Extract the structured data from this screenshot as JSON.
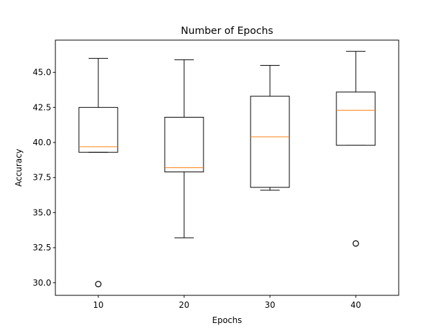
{
  "chart_data": {
    "type": "box",
    "title": "Number of Epochs",
    "xlabel": "Epochs",
    "ylabel": "Accuracy",
    "ylim": [
      29.1,
      47.3
    ],
    "yticks": [
      30.0,
      32.5,
      35.0,
      37.5,
      40.0,
      42.5,
      45.0
    ],
    "ytick_labels": [
      "30.0",
      "32.5",
      "35.0",
      "37.5",
      "40.0",
      "42.5",
      "45.0"
    ],
    "categories": [
      "10",
      "20",
      "30",
      "40"
    ],
    "boxes": [
      {
        "category": "10",
        "whisker_low": 39.3,
        "q1": 39.3,
        "median": 39.7,
        "q3": 42.5,
        "whisker_high": 46.0,
        "outliers": [
          29.9
        ]
      },
      {
        "category": "20",
        "whisker_low": 33.2,
        "q1": 37.9,
        "median": 38.2,
        "q3": 41.8,
        "whisker_high": 45.9,
        "outliers": []
      },
      {
        "category": "30",
        "whisker_low": 36.6,
        "q1": 36.8,
        "median": 40.4,
        "q3": 43.3,
        "whisker_high": 45.5,
        "outliers": []
      },
      {
        "category": "40",
        "whisker_low": 39.8,
        "q1": 39.8,
        "median": 42.3,
        "q3": 43.6,
        "whisker_high": 46.5,
        "outliers": [
          32.8
        ]
      }
    ],
    "grid": false,
    "colors": {
      "box": "#000000",
      "median": "#ff7f0e",
      "outlier_marker": "#000000",
      "axes": "#000000",
      "background": "#ffffff"
    }
  }
}
